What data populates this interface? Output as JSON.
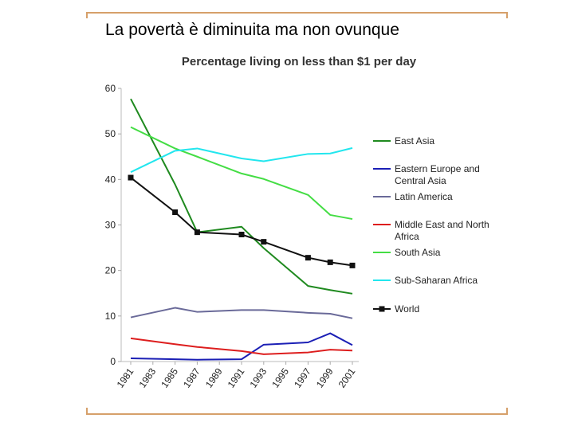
{
  "slide_title": "La povertà è diminuita ma non ovunque",
  "chart_data": {
    "type": "line",
    "title": "Percentage living on less than $1 per day",
    "xlabel": "",
    "ylabel": "",
    "x": [
      1981,
      1983,
      1985,
      1987,
      1989,
      1991,
      1993,
      1995,
      1997,
      1999,
      2001
    ],
    "x_tick_labels": [
      "1981",
      "1983",
      "1985",
      "1987",
      "1989",
      "1991",
      "1993",
      "1995",
      "1997",
      "1999",
      "2001"
    ],
    "ylim": [
      0,
      60
    ],
    "y_ticks": [
      0,
      10,
      20,
      30,
      40,
      50,
      60
    ],
    "legend_position": "right",
    "series": [
      {
        "name": "East Asia",
        "color": "#1f8a1f",
        "values": [
          57.7,
          null,
          38.9,
          28.4,
          null,
          29.6,
          24.9,
          null,
          16.6,
          15.7,
          14.9
        ],
        "marker": false
      },
      {
        "name": "Eastern Europe and Central Asia",
        "color": "#1b1fb5",
        "values": [
          0.7,
          null,
          0.5,
          0.4,
          null,
          0.5,
          3.7,
          null,
          4.2,
          6.2,
          3.6
        ],
        "marker": false
      },
      {
        "name": "Latin America",
        "color": "#6a6a99",
        "values": [
          9.7,
          null,
          11.8,
          10.9,
          null,
          11.3,
          11.3,
          null,
          10.7,
          10.5,
          9.5
        ],
        "marker": false
      },
      {
        "name": "Middle East and North Africa",
        "color": "#dd1e1e",
        "values": [
          5.1,
          null,
          3.8,
          3.2,
          null,
          2.3,
          1.6,
          null,
          2.0,
          2.6,
          2.4
        ],
        "marker": false
      },
      {
        "name": "South Asia",
        "color": "#44dd44",
        "values": [
          51.5,
          null,
          46.8,
          45.0,
          null,
          41.3,
          40.1,
          null,
          36.6,
          32.2,
          31.3
        ],
        "marker": false
      },
      {
        "name": "Sub-Saharan Africa",
        "color": "#22e6ee",
        "values": [
          41.6,
          null,
          46.3,
          46.8,
          null,
          44.6,
          44.0,
          null,
          45.6,
          45.7,
          46.9
        ],
        "marker": false
      },
      {
        "name": "World",
        "color": "#111111",
        "values": [
          40.4,
          null,
          32.8,
          28.4,
          null,
          27.9,
          26.3,
          null,
          22.8,
          21.8,
          21.1
        ],
        "marker": true
      }
    ]
  }
}
